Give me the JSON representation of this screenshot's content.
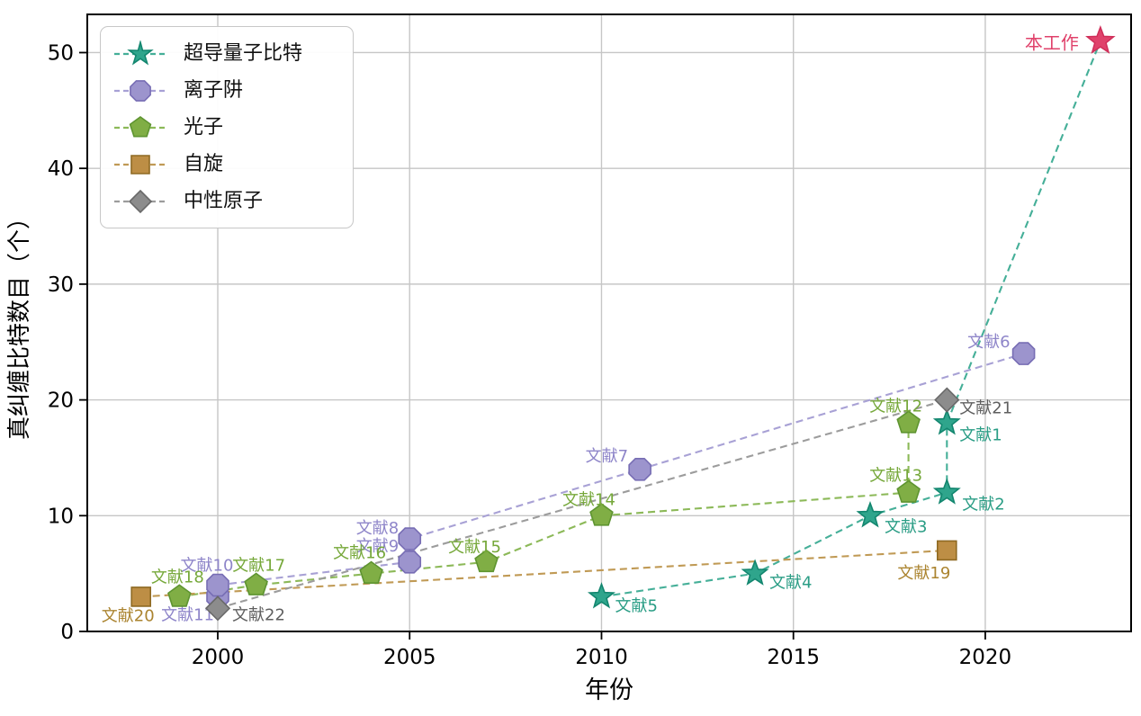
{
  "figure": {
    "xlabel": "年份",
    "ylabel": "真纠缠比特数目（个）"
  },
  "chart_data": {
    "type": "scatter",
    "title": "",
    "xlabel": "年份",
    "ylabel": "真纠缠比特数目（个）",
    "xlim": [
      1996.6,
      2023.8
    ],
    "ylim": [
      0,
      53.3
    ],
    "xticks": [
      2000,
      2005,
      2010,
      2015,
      2020
    ],
    "yticks": [
      0,
      10,
      20,
      30,
      40,
      50
    ],
    "grid": true,
    "grid_color": "#c6c6c6",
    "frame_color": "#000000",
    "legend_position": "upper-left",
    "series": [
      {
        "name": "超导量子比特",
        "marker": "star",
        "color": "#2fa58c",
        "edge_color": "#13866f",
        "line_color": "#45af98",
        "label_color": "#2a9d85",
        "points": [
          {
            "x": 2010,
            "y": 3,
            "label": "文献5",
            "dx": 15,
            "dy": 16,
            "anchor": "start"
          },
          {
            "x": 2014,
            "y": 5,
            "label": "文献4",
            "dx": 16,
            "dy": 16,
            "anchor": "start"
          },
          {
            "x": 2017,
            "y": 10,
            "label": "文献3",
            "dx": 16,
            "dy": 18,
            "anchor": "start"
          },
          {
            "x": 2019,
            "y": 12,
            "label": "文献2",
            "dx": 17,
            "dy": 19,
            "anchor": "start"
          },
          {
            "x": 2019,
            "y": 18,
            "label": "文献1",
            "dx": 14,
            "dy": 19,
            "anchor": "start"
          }
        ]
      },
      {
        "name": "离子阱",
        "marker": "octagon",
        "color": "#9c94cd",
        "edge_color": "#776db4",
        "line_color": "#a8a1d5",
        "label_color": "#8e85c9",
        "points": [
          {
            "x": 2000,
            "y": 3,
            "label": "文献11",
            "dx": -4,
            "dy": 26,
            "anchor": "end"
          },
          {
            "x": 2000,
            "y": 4,
            "label": "文献10",
            "dx": -12,
            "dy": -16,
            "anchor": "middle"
          },
          {
            "x": 2005,
            "y": 6,
            "label": "文献9",
            "dx": -12,
            "dy": -12,
            "anchor": "end"
          },
          {
            "x": 2005,
            "y": 8,
            "label": "文献8",
            "dx": -12,
            "dy": -6,
            "anchor": "end"
          },
          {
            "x": 2011,
            "y": 14,
            "label": "文献7",
            "dx": -13,
            "dy": -9,
            "anchor": "end"
          },
          {
            "x": 2021,
            "y": 24,
            "label": "文献6",
            "dx": -15,
            "dy": -7,
            "anchor": "end"
          }
        ]
      },
      {
        "name": "光子",
        "marker": "pentagon",
        "color": "#80ae45",
        "edge_color": "#5e9430",
        "line_color": "#8cb958",
        "label_color": "#76a83a",
        "points": [
          {
            "x": 1999,
            "y": 3,
            "label": "文献18",
            "dx": -2,
            "dy": -16,
            "anchor": "middle"
          },
          {
            "x": 2001,
            "y": 4,
            "label": "文献17",
            "dx": 3,
            "dy": -16,
            "anchor": "middle"
          },
          {
            "x": 2004,
            "y": 5,
            "label": "文献16",
            "dx": -13,
            "dy": -17,
            "anchor": "middle"
          },
          {
            "x": 2007,
            "y": 6,
            "label": "文献15",
            "dx": -13,
            "dy": -11,
            "anchor": "middle"
          },
          {
            "x": 2010,
            "y": 10,
            "label": "文献14",
            "dx": -14,
            "dy": -12,
            "anchor": "middle"
          },
          {
            "x": 2018,
            "y": 12,
            "label": "文献13",
            "dx": -14,
            "dy": -13,
            "anchor": "middle"
          },
          {
            "x": 2018,
            "y": 18,
            "label": "文献12",
            "dx": -14,
            "dy": -13,
            "anchor": "middle"
          }
        ]
      },
      {
        "name": "自旋",
        "marker": "square",
        "color": "#bd8e45",
        "edge_color": "#8f6a23",
        "line_color": "#c09a55",
        "label_color": "#ab8430",
        "points": [
          {
            "x": 1998,
            "y": 3,
            "label": "文献20",
            "dx": 15,
            "dy": 27,
            "anchor": "end"
          },
          {
            "x": 2019,
            "y": 7,
            "label": "文献19",
            "dx": 4,
            "dy": 31,
            "anchor": "end"
          }
        ]
      },
      {
        "name": "中性原子",
        "marker": "diamond",
        "color": "#8c8c8c",
        "edge_color": "#696969",
        "line_color": "#9c9c9c",
        "label_color": "#5f5f5f",
        "points": [
          {
            "x": 2000,
            "y": 2,
            "label": "文献22",
            "dx": 16,
            "dy": 13,
            "anchor": "start"
          },
          {
            "x": 2019,
            "y": 20,
            "label": "文献21",
            "dx": 14,
            "dy": 15,
            "anchor": "start"
          }
        ]
      }
    ],
    "highlight": {
      "label": "本工作",
      "marker": "star",
      "x": 2023,
      "y": 51,
      "color": "#e0426b",
      "edge_color": "#d02e59",
      "dx": -24,
      "dy": 9,
      "anchor": "end",
      "connect_series": 0
    }
  }
}
